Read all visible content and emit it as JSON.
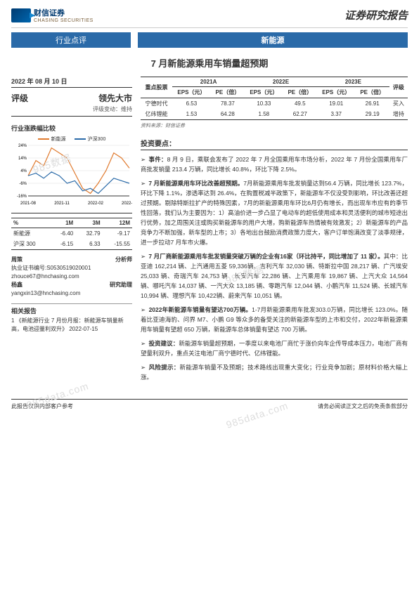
{
  "header": {
    "logo_cn": "财信证券",
    "logo_en": "CHASING SECURITIES",
    "report_type": "证券研究报告",
    "band_left": "行业点评",
    "band_right": "新能源",
    "title": "7 月新能源乘用车销量超预期"
  },
  "left": {
    "date": "2022 年 08 月 10 日",
    "rating_label": "评级",
    "rating_value": "领先大市",
    "rating_change": "评级变动：维持",
    "perf_header": "行业涨跌幅比较",
    "chart": {
      "legend": [
        {
          "label": "新能源",
          "color": "#e07a2e"
        },
        {
          "label": "沪深300",
          "color": "#2a6aa8"
        }
      ],
      "y_ticks": [
        "24%",
        "14%",
        "4%",
        "-6%",
        "-16%"
      ],
      "x_ticks": [
        "2021-08",
        "2021-11",
        "2022-02",
        "2022-05"
      ],
      "y_range": [
        -16,
        24
      ],
      "series": {
        "new_energy": [
          0,
          12,
          8,
          22,
          18,
          14,
          2,
          -10,
          -14,
          -6,
          4,
          18,
          14,
          6
        ],
        "csi300": [
          0,
          2,
          -2,
          3,
          0,
          -6,
          -4,
          -12,
          -10,
          -14,
          -8,
          -2,
          -4,
          -6
        ]
      },
      "line_colors": {
        "new_energy": "#e07a2e",
        "csi300": "#2a6aa8"
      }
    },
    "perf_table": {
      "cols": [
        "%",
        "1M",
        "3M",
        "12M"
      ],
      "rows": [
        [
          "新能源",
          "-6.40",
          "32.79",
          "-9.17"
        ],
        [
          "沪深 300",
          "-6.15",
          "6.33",
          "-15.55"
        ]
      ]
    },
    "analysts": [
      {
        "name": "周策",
        "role": "分析师",
        "cert": "执业证书编号:S0530519020001",
        "email": "zhouce67@hnchasing.com"
      },
      {
        "name": "杨鑫",
        "role": "研究助理",
        "email": "yangxin13@hnchasing.com"
      }
    ],
    "related_header": "相关报告",
    "related_items": [
      {
        "idx": "1",
        "title": "《新能源行业 7 月份月报：新能源车销量新高，电池迎量利双升》",
        "date": "2022-07-15"
      }
    ]
  },
  "right": {
    "stock_table": {
      "group_headers": [
        "重点股票",
        "2021A",
        "2022E",
        "2023E",
        "评级"
      ],
      "sub_headers": [
        "",
        "EPS（元）",
        "PE（倍）",
        "EPS（元）",
        "PE（倍）",
        "EPS（元）",
        "PE（倍）",
        ""
      ],
      "rows": [
        [
          "宁德时代",
          "6.53",
          "78.37",
          "10.33",
          "49.5",
          "19.01",
          "26.91",
          "买入"
        ],
        [
          "亿纬锂能",
          "1.53",
          "64.28",
          "1.58",
          "62.27",
          "3.37",
          "29.19",
          "增持"
        ]
      ],
      "source": "资料来源：财信证券"
    },
    "points_header": "投资要点：",
    "points": [
      {
        "lead": "事件：",
        "text": "8 月 9 日，乘联会发布了 2022 年 7 月全国乘用车市场分析，2022 年 7 月份全国乘用车厂商批发销量 213.4 万辆，同比增长 40.8%，环比下降 2.5%。"
      },
      {
        "lead": "7 月新能源乘用车环比改善超预期。",
        "text": "7月新能源乘用车批发销量达到56.4 万辆，同比增长 123.7%，环比下降 1.1%，渗透率达到 26.4%，在购置税减半政策下，新能源车不仅没受到影响，环比改善还超过预期。剔除特斯拉扩产的特殊因素，7月的新能源乘用车环比6月仍有增长，而出现车市应有的季节性回落，我们认为主要因为：1）高油价进一步凸显了电动车的超低使用成本和灵活便利的城市短途出行优势，加之周围关注或购买新能源车的用户大增，购新能源车热情被有效激发；2）新能源车的产品竞争力不断加强，新车型的上市；3）各地出台鼓励消费政策力度大，客户订单饱满改变了淡季规律，进一步拉动7 月车市火爆。"
      },
      {
        "lead": "7 月厂商新能源乘用车批发销量突破万辆的企业有16家（环比持平，同比增加了 11 家）。",
        "text": "其中：比亚迪 162,214 辆、上汽通用五菱 59,336辆、吉利汽车 32,030 辆、特斯拉中国 28,217 辆、广汽埃安 25,033 辆、奇瑞汽车 24,753 辆、长安汽车 22,286 辆、上汽乘用车 19,867 辆、上汽大众 14,564 辆、哪吒汽车 14,037 辆、一汽大众 13,185 辆、零跑汽车 12,044 辆、小鹏汽车 11,524 辆、长城汽车 10,994 辆、理想汽车 10,422辆、蔚来汽车 10,051 辆。"
      },
      {
        "lead": "2022年新能源车销量有望达700万辆。",
        "text": "1-7月新能源乘用车批发303.0万辆，同比增长 123.0%。随着比亚迪海豹、问界 M7、小鹏 G9 等众多的备受关注的新能源车型的上市和交付，2022年新能源乘用车销量有望超 650 万辆，新能源车总体销量有望达 700 万辆。"
      },
      {
        "lead": "投资建议：",
        "text": "新能源车销量超预期，一季度以来电池厂商忙于涨价向车企传导成本压力，电池厂商有望量利双升，重点关注电池厂商宁德时代、亿纬锂能。"
      },
      {
        "lead": "风险提示：",
        "text": "新能源车销量不及预期；技术路线出现重大变化；行业竞争加剧；原材料价格大幅上涨。"
      }
    ]
  },
  "footer": {
    "left": "此报告仅供内部客户参考",
    "right": "请务必阅读正文之后的免责条款部分"
  },
  "watermarks": [
    "985数据",
    "985data.com"
  ]
}
